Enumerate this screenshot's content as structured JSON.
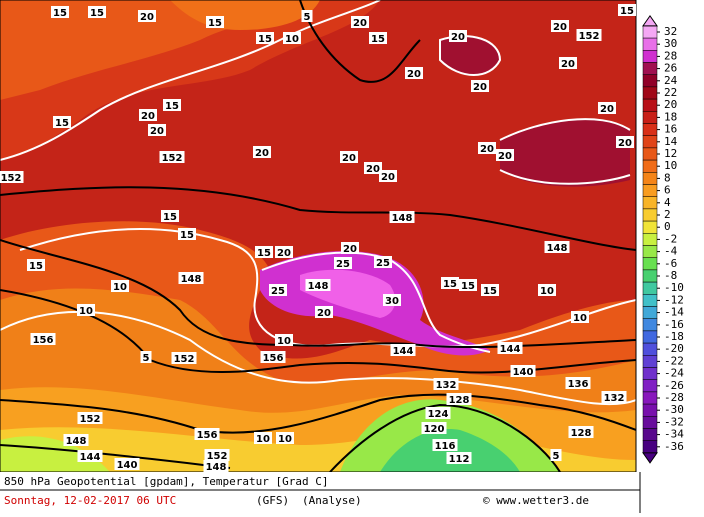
{
  "map": {
    "title": "850 hPa Geopotential [gpdam], Temperatur [Grad C]",
    "date": "Sonntag, 12-02-2017  06 UTC",
    "model": "(GFS)",
    "run": "(Analyse)",
    "credit": "© www.wetter3.de",
    "labels": [
      "15",
      "15",
      "20",
      "15",
      "5",
      "20",
      "15",
      "15",
      "10",
      "15",
      "20",
      "20",
      "152",
      "20",
      "20",
      "20",
      "20",
      "15",
      "20",
      "20",
      "15",
      "152",
      "152",
      "20",
      "20",
      "20",
      "20",
      "20",
      "20",
      "20",
      "148",
      "148",
      "15",
      "15",
      "15",
      "15",
      "20",
      "20",
      "25",
      "25",
      "148",
      "10",
      "25",
      "148",
      "30",
      "15",
      "15",
      "15",
      "10",
      "10",
      "10",
      "20",
      "144",
      "144",
      "152",
      "156",
      "10",
      "5",
      "156",
      "140",
      "132",
      "128",
      "136",
      "132",
      "124",
      "120",
      "116",
      "112",
      "152",
      "148",
      "144",
      "140",
      "152",
      "148",
      "156",
      "10",
      "10",
      "5",
      "128"
    ],
    "colorbar": {
      "levels": [
        32,
        30,
        28,
        26,
        24,
        22,
        20,
        18,
        16,
        14,
        12,
        10,
        8,
        6,
        4,
        2,
        0,
        -2,
        -4,
        -6,
        -8,
        -10,
        -12,
        -14,
        -16,
        -18,
        -20,
        -22,
        -24,
        -26,
        -28,
        -30,
        -32,
        -34,
        -36
      ],
      "colors": [
        "#f4a8f4",
        "#e870e8",
        "#d030d0",
        "#a01050",
        "#900028",
        "#a00818",
        "#b81018",
        "#c82018",
        "#d83018",
        "#e04418",
        "#e85818",
        "#f06c18",
        "#f48418",
        "#f89c20",
        "#f8b428",
        "#f8cc30",
        "#f0e438",
        "#c8f040",
        "#98e848",
        "#68e050",
        "#48d070",
        "#40c8a0",
        "#40c0c8",
        "#40a8d8",
        "#4088e0",
        "#4068e0",
        "#5050dc",
        "#6040d4",
        "#7030cc",
        "#8020c4",
        "#8818bc",
        "#7810ac",
        "#680c9c",
        "#58088c",
        "#480080"
      ]
    }
  }
}
